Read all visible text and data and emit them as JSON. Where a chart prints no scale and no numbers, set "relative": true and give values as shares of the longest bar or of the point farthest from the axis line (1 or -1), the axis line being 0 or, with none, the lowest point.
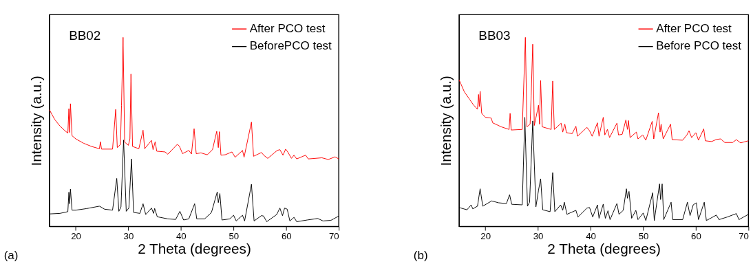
{
  "chart_data": [
    {
      "type": "line",
      "relative": true,
      "xlabel": "2 Theta (degrees)",
      "ylabel": "Intensity (a.u.)",
      "xlim": [
        15,
        70
      ],
      "xticks": [
        20,
        30,
        40,
        50,
        60,
        70
      ],
      "tick_labels": "x",
      "legend": "top right",
      "grid": false,
      "annotations": [
        "BB02",
        "(a)"
      ],
      "line_style": "solid",
      "series": [
        {
          "name": "After PCO test",
          "color": "#ff0000",
          "x": [
            15,
            16,
            17,
            18,
            18.5,
            18.7,
            18.85,
            19.0,
            19.3,
            20,
            21.5,
            23,
            24.5,
            24.7,
            24.9,
            27,
            27.6,
            27.9,
            28.5,
            28.7,
            29.0,
            29.3,
            30.0,
            30.3,
            30.5,
            30.8,
            32,
            32.8,
            33.1,
            34.4,
            34.7,
            35.1,
            35.4,
            37.0,
            37.5,
            39.3,
            39.7,
            40.3,
            41.5,
            42.0,
            42.5,
            42.9,
            43.8,
            45,
            46.0,
            46.8,
            47.1,
            47.3,
            47.6,
            48.4,
            49.7,
            50.3,
            51.7,
            52.0,
            53.4,
            53.8,
            55.3,
            55.8,
            56.5,
            58.3,
            58.8,
            59.4,
            59.9,
            60.3,
            61.0,
            61.5,
            62,
            63.7,
            64.2,
            66.8,
            68,
            69.3,
            70
          ],
          "values": [
            0.617,
            0.566,
            0.531,
            0.505,
            0.494,
            0.623,
            0.497,
            0.649,
            0.48,
            0.463,
            0.44,
            0.423,
            0.411,
            0.448,
            0.409,
            0.409,
            0.619,
            0.417,
            0.434,
            0.64,
            1.0,
            0.446,
            0.429,
            0.463,
            0.806,
            0.423,
            0.411,
            0.509,
            0.411,
            0.455,
            0.406,
            0.448,
            0.398,
            0.394,
            0.382,
            0.434,
            0.425,
            0.385,
            0.402,
            0.383,
            0.517,
            0.385,
            0.389,
            0.379,
            0.406,
            0.503,
            0.417,
            0.501,
            0.377,
            0.379,
            0.394,
            0.366,
            0.402,
            0.366,
            0.552,
            0.371,
            0.391,
            0.375,
            0.36,
            0.402,
            0.406,
            0.377,
            0.409,
            0.394,
            0.36,
            0.377,
            0.357,
            0.377,
            0.357,
            0.363,
            0.354,
            0.368,
            0.357
          ]
        },
        {
          "name": "BeforePCO test",
          "color": "#000000",
          "x": [
            15,
            17,
            18.5,
            18.7,
            18.85,
            19.0,
            19.3,
            20,
            22,
            24.5,
            25.5,
            27.0,
            27.8,
            28.2,
            28.6,
            29.1,
            29.6,
            30.1,
            30.6,
            31.0,
            32.2,
            32.8,
            33.3,
            34.4,
            34.8,
            35.0,
            35.5,
            37.5,
            39.0,
            39.8,
            40.5,
            41.5,
            42.6,
            43.0,
            44.5,
            45.8,
            46.9,
            47.1,
            47.4,
            47.8,
            49.3,
            50.0,
            50.5,
            51.7,
            52.1,
            53.4,
            53.9,
            55.3,
            55.7,
            56.3,
            58.2,
            58.8,
            59.3,
            59.7,
            60.2,
            60.7,
            61.5,
            62,
            64.0,
            66.0,
            67.0,
            68.5,
            70
          ],
          "values": [
            0.066,
            0.069,
            0.078,
            0.181,
            0.12,
            0.197,
            0.086,
            0.086,
            0.094,
            0.107,
            0.091,
            0.086,
            0.254,
            0.08,
            0.103,
            0.457,
            0.08,
            0.097,
            0.357,
            0.074,
            0.069,
            0.12,
            0.063,
            0.097,
            0.069,
            0.095,
            0.051,
            0.04,
            0.037,
            0.08,
            0.034,
            0.04,
            0.12,
            0.04,
            0.04,
            0.074,
            0.183,
            0.126,
            0.174,
            0.034,
            0.04,
            0.059,
            0.029,
            0.059,
            0.029,
            0.223,
            0.029,
            0.057,
            0.055,
            0.025,
            0.063,
            0.097,
            0.057,
            0.097,
            0.091,
            0.029,
            0.048,
            0.025,
            0.034,
            0.042,
            0.029,
            0.032,
            0.055
          ]
        }
      ]
    },
    {
      "type": "line",
      "relative": true,
      "xlabel": "2 Theta (degrees)",
      "ylabel": "Intensity (a.u.)",
      "xlim": [
        15,
        70
      ],
      "xticks": [
        20,
        30,
        40,
        50,
        60,
        70
      ],
      "tick_labels": "x",
      "legend": "top right",
      "grid": false,
      "annotations": [
        "BB03",
        "(b)"
      ],
      "line_style": "solid",
      "series": [
        {
          "name": "After PCO test",
          "color": "#ff0000",
          "x": [
            15,
            16,
            17,
            17.7,
            18.5,
            18.7,
            18.85,
            19.0,
            19.3,
            20,
            21.1,
            21.4,
            23,
            24.5,
            24.7,
            24.9,
            27.0,
            27.6,
            27.9,
            28.5,
            28.7,
            29.0,
            29.3,
            30.1,
            30.3,
            30.5,
            30.8,
            32.5,
            32.8,
            33.1,
            34.4,
            34.7,
            35.1,
            35.4,
            36.5,
            37.2,
            37.5,
            39.3,
            39.8,
            40.3,
            41.3,
            41.6,
            42.4,
            42.7,
            43.2,
            43.6,
            45.0,
            45.3,
            46.0,
            46.7,
            47.0,
            47.2,
            47.5,
            48.7,
            49.0,
            49.9,
            50.5,
            51.7,
            52.0,
            52.9,
            53.2,
            53.4,
            53.8,
            55.2,
            55.5,
            57.5,
            58.3,
            58.7,
            59.2,
            60.0,
            60.5,
            61.5,
            61.8,
            63.0,
            63.9,
            64.7,
            65.5,
            67.0,
            67.7,
            68.5,
            70
          ],
          "values": [
            0.776,
            0.712,
            0.672,
            0.644,
            0.62,
            0.698,
            0.634,
            0.715,
            0.598,
            0.577,
            0.573,
            0.548,
            0.527,
            0.513,
            0.598,
            0.51,
            0.513,
            1.0,
            0.527,
            0.541,
            0.691,
            0.964,
            0.534,
            0.641,
            0.541,
            0.772,
            0.527,
            0.513,
            0.769,
            0.513,
            0.546,
            0.499,
            0.541,
            0.496,
            0.491,
            0.53,
            0.477,
            0.524,
            0.506,
            0.477,
            0.548,
            0.477,
            0.577,
            0.484,
            0.513,
            0.47,
            0.546,
            0.484,
            0.487,
            0.563,
            0.513,
            0.56,
            0.47,
            0.499,
            0.463,
            0.484,
            0.456,
            0.556,
            0.463,
            0.601,
            0.499,
            0.541,
            0.463,
            0.541,
            0.459,
            0.456,
            0.484,
            0.506,
            0.47,
            0.496,
            0.456,
            0.516,
            0.453,
            0.449,
            0.46,
            0.463,
            0.444,
            0.444,
            0.459,
            0.442,
            0.453
          ]
        },
        {
          "name": "Before PCO test",
          "color": "#000000",
          "x": [
            15,
            16.5,
            17.3,
            17.6,
            18.5,
            19.0,
            19.5,
            21.2,
            22.5,
            24.0,
            24.6,
            25.0,
            27.0,
            27.5,
            28.0,
            28.4,
            29.0,
            29.6,
            30.1,
            30.5,
            30.9,
            32.3,
            32.8,
            33.2,
            34.3,
            34.7,
            35.0,
            35.5,
            37.2,
            37.6,
            39.3,
            39.8,
            40.4,
            41.3,
            41.6,
            42.4,
            42.8,
            43.3,
            43.7,
            45.0,
            45.4,
            46.2,
            46.8,
            47.0,
            47.3,
            47.8,
            48.6,
            49.0,
            50.0,
            50.5,
            51.8,
            52.1,
            53.1,
            53.3,
            53.6,
            53.9,
            55.3,
            55.6,
            57.5,
            58.4,
            58.9,
            59.5,
            60.1,
            60.5,
            61.6,
            62.0,
            63.9,
            64.4,
            66.0,
            67.7,
            68.2,
            70
          ],
          "values": [
            0.1,
            0.088,
            0.114,
            0.093,
            0.107,
            0.199,
            0.107,
            0.135,
            0.125,
            0.121,
            0.168,
            0.117,
            0.114,
            0.577,
            0.107,
            0.128,
            0.558,
            0.103,
            0.192,
            0.252,
            0.088,
            0.078,
            0.285,
            0.078,
            0.114,
            0.085,
            0.128,
            0.064,
            0.085,
            0.05,
            0.097,
            0.1,
            0.05,
            0.114,
            0.043,
            0.118,
            0.043,
            0.083,
            0.036,
            0.121,
            0.064,
            0.085,
            0.199,
            0.149,
            0.185,
            0.043,
            0.085,
            0.036,
            0.071,
            0.031,
            0.178,
            0.031,
            0.225,
            0.142,
            0.225,
            0.036,
            0.128,
            0.036,
            0.036,
            0.128,
            0.057,
            0.114,
            0.125,
            0.036,
            0.128,
            0.031,
            0.06,
            0.036,
            0.05,
            0.068,
            0.036,
            0.064
          ]
        }
      ]
    }
  ]
}
